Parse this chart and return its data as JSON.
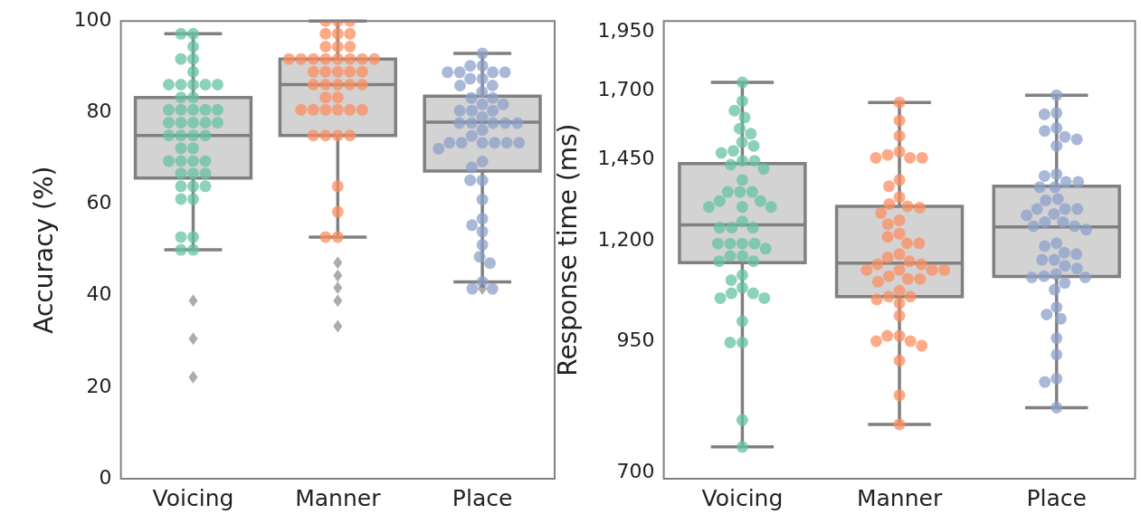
{
  "chart_data": [
    {
      "type": "box",
      "ylabel": "Accuracy (%)",
      "categories": [
        "Voicing",
        "Manner",
        "Place"
      ],
      "color": "#d3d3d3",
      "marker": "circle",
      "grid": false,
      "legend": false,
      "ylim": [
        0,
        100
      ],
      "yticks": [
        0,
        20,
        40,
        60,
        80,
        100
      ],
      "boxes": [
        {
          "low": 50.0,
          "q1": 65.7,
          "median": 75.0,
          "q3": 83.3,
          "high": 97.2,
          "outliers": [
            38.9,
            30.6,
            22.2
          ]
        },
        {
          "low": 52.8,
          "q1": 75.0,
          "median": 86.1,
          "q3": 91.7,
          "high": 100,
          "outliers": [
            47.2,
            44.4,
            41.7,
            38.9,
            33.3
          ]
        },
        {
          "low": 43.0,
          "q1": 67.2,
          "median": 77.9,
          "q3": 83.6,
          "high": 92.9,
          "outliers": [
            41.5
          ]
        }
      ],
      "series": [
        {
          "type": "scatter",
          "color": "#66c2a5",
          "x": [
            "Voicing",
            "Voicing",
            "Voicing",
            "Voicing",
            "Voicing",
            "Voicing",
            "Voicing",
            "Voicing",
            "Voicing",
            "Voicing",
            "Voicing",
            "Voicing",
            "Voicing",
            "Voicing",
            "Voicing",
            "Voicing",
            "Voicing",
            "Voicing",
            "Voicing",
            "Voicing",
            "Voicing",
            "Voicing",
            "Voicing",
            "Voicing",
            "Voicing",
            "Voicing",
            "Voicing",
            "Voicing",
            "Voicing",
            "Voicing",
            "Voicing",
            "Voicing",
            "Voicing",
            "Voicing",
            "Voicing",
            "Voicing",
            "Voicing",
            "Voicing",
            "Voicing",
            "Voicing",
            "Voicing",
            "Voicing",
            "Voicing",
            "Voicing",
            "Voicing"
          ],
          "values": [
            97.2,
            97.2,
            94.4,
            91.7,
            91.7,
            88.9,
            86.1,
            86.1,
            86.1,
            86.1,
            86.1,
            83.3,
            83.3,
            80.6,
            80.6,
            80.6,
            80.6,
            80.6,
            77.8,
            77.8,
            77.8,
            77.8,
            77.8,
            75.0,
            75.0,
            75.0,
            75.0,
            72.2,
            72.2,
            69.4,
            69.4,
            69.4,
            69.4,
            66.7,
            66.7,
            66.7,
            63.9,
            63.9,
            63.9,
            61.1,
            61.1,
            52.8,
            52.8,
            50.0,
            50.0
          ]
        },
        {
          "type": "scatter",
          "color": "#fc8d62",
          "x": [
            "Manner",
            "Manner",
            "Manner",
            "Manner",
            "Manner",
            "Manner",
            "Manner",
            "Manner",
            "Manner",
            "Manner",
            "Manner",
            "Manner",
            "Manner",
            "Manner",
            "Manner",
            "Manner",
            "Manner",
            "Manner",
            "Manner",
            "Manner",
            "Manner",
            "Manner",
            "Manner",
            "Manner",
            "Manner",
            "Manner",
            "Manner",
            "Manner",
            "Manner",
            "Manner",
            "Manner",
            "Manner",
            "Manner",
            "Manner",
            "Manner",
            "Manner",
            "Manner",
            "Manner",
            "Manner",
            "Manner",
            "Manner",
            "Manner",
            "Manner"
          ],
          "values": [
            100,
            100,
            100,
            97.2,
            97.2,
            97.2,
            94.4,
            94.4,
            94.4,
            91.7,
            91.7,
            91.7,
            91.7,
            91.7,
            91.7,
            91.7,
            91.7,
            88.9,
            88.9,
            88.9,
            88.9,
            88.9,
            86.1,
            86.1,
            86.1,
            86.1,
            86.1,
            83.3,
            83.3,
            80.6,
            80.6,
            80.6,
            80.6,
            80.6,
            80.6,
            75.0,
            75.0,
            75.0,
            75.0,
            63.9,
            58.3,
            52.8,
            52.8
          ]
        },
        {
          "type": "scatter",
          "color": "#8da0cb",
          "x": [
            "Place",
            "Place",
            "Place",
            "Place",
            "Place",
            "Place",
            "Place",
            "Place",
            "Place",
            "Place",
            "Place",
            "Place",
            "Place",
            "Place",
            "Place",
            "Place",
            "Place",
            "Place",
            "Place",
            "Place",
            "Place",
            "Place",
            "Place",
            "Place",
            "Place",
            "Place",
            "Place",
            "Place",
            "Place",
            "Place",
            "Place",
            "Place",
            "Place",
            "Place",
            "Place",
            "Place",
            "Place",
            "Place",
            "Place",
            "Place",
            "Place",
            "Place",
            "Place",
            "Place",
            "Place",
            "Place",
            "Place",
            "Place"
          ],
          "values": [
            92.9,
            90.2,
            90.2,
            88.8,
            88.8,
            88.8,
            88.8,
            87.4,
            87.4,
            85.9,
            85.9,
            84.5,
            83.2,
            83.2,
            81.8,
            81.8,
            80.4,
            80.4,
            80.4,
            79.0,
            77.7,
            77.7,
            77.7,
            77.7,
            77.7,
            76.2,
            74.9,
            73.4,
            73.4,
            73.4,
            73.4,
            73.4,
            73.4,
            72.1,
            69.3,
            68.0,
            65.2,
            65.2,
            61.0,
            56.8,
            55.4,
            54.0,
            51.1,
            48.5,
            47.1,
            43.0,
            41.5,
            41.5
          ]
        }
      ]
    },
    {
      "type": "box",
      "ylabel": "Response time (ms)",
      "categories": [
        "Voicing",
        "Manner",
        "Place"
      ],
      "color": "#d3d3d3",
      "marker": "circle",
      "grid": false,
      "legend": false,
      "log": true,
      "ylim": [
        690,
        2000
      ],
      "yticks": [
        700,
        950,
        {
          "value": 1200,
          "label": "1,200"
        },
        {
          "value": 1450,
          "label": "1,450"
        },
        {
          "value": 1700,
          "label": "1,700"
        },
        {
          "value": 1950,
          "label": "1,950"
        }
      ],
      "boxes": [
        {
          "low": 743,
          "q1": 1140,
          "median": 1245,
          "q3": 1436,
          "high": 1734
        },
        {
          "low": 783,
          "q1": 1054,
          "median": 1139,
          "q3": 1300,
          "high": 1655
        },
        {
          "low": 814,
          "q1": 1104,
          "median": 1239,
          "q3": 1362,
          "high": 1683
        }
      ],
      "series": [
        {
          "type": "scatter",
          "color": "#66c2a5",
          "x": [
            "Voicing",
            "Voicing",
            "Voicing",
            "Voicing",
            "Voicing",
            "Voicing",
            "Voicing",
            "Voicing",
            "Voicing",
            "Voicing",
            "Voicing",
            "Voicing",
            "Voicing",
            "Voicing",
            "Voicing",
            "Voicing",
            "Voicing",
            "Voicing",
            "Voicing",
            "Voicing",
            "Voicing",
            "Voicing",
            "Voicing",
            "Voicing",
            "Voicing",
            "Voicing",
            "Voicing",
            "Voicing",
            "Voicing",
            "Voicing",
            "Voicing",
            "Voicing",
            "Voicing",
            "Voicing",
            "Voicing",
            "Voicing",
            "Voicing",
            "Voicing",
            "Voicing",
            "Voicing",
            "Voicing",
            "Voicing",
            "Voicing",
            "Voicing",
            "Voicing",
            "Voicing",
            "Voicing",
            "Voicing"
          ],
          "values": [
            1734,
            1660,
            1624,
            1598,
            1557,
            1539,
            1509,
            1496,
            1479,
            1472,
            1445,
            1445,
            1432,
            1418,
            1382,
            1344,
            1344,
            1344,
            1316,
            1316,
            1298,
            1298,
            1298,
            1255,
            1237,
            1237,
            1237,
            1192,
            1192,
            1192,
            1192,
            1178,
            1158,
            1158,
            1144,
            1144,
            1108,
            1095,
            1076,
            1062,
            1062,
            1050,
            1050,
            995,
            947,
            947,
            791,
            743
          ]
        },
        {
          "type": "scatter",
          "color": "#fc8d62",
          "x": [
            "Manner",
            "Manner",
            "Manner",
            "Manner",
            "Manner",
            "Manner",
            "Manner",
            "Manner",
            "Manner",
            "Manner",
            "Manner",
            "Manner",
            "Manner",
            "Manner",
            "Manner",
            "Manner",
            "Manner",
            "Manner",
            "Manner",
            "Manner",
            "Manner",
            "Manner",
            "Manner",
            "Manner",
            "Manner",
            "Manner",
            "Manner",
            "Manner",
            "Manner",
            "Manner",
            "Manner",
            "Manner",
            "Manner",
            "Manner",
            "Manner",
            "Manner",
            "Manner",
            "Manner",
            "Manner",
            "Manner",
            "Manner",
            "Manner",
            "Manner",
            "Manner",
            "Manner",
            "Manner",
            "Manner",
            "Manner"
          ],
          "values": [
            1655,
            1587,
            1531,
            1476,
            1465,
            1455,
            1455,
            1455,
            1382,
            1362,
            1328,
            1296,
            1300,
            1307,
            1280,
            1258,
            1247,
            1220,
            1211,
            1193,
            1193,
            1163,
            1154,
            1144,
            1136,
            1136,
            1121,
            1121,
            1121,
            1121,
            1105,
            1098,
            1098,
            1091,
            1068,
            1054,
            1054,
            1047,
            1038,
            1008,
            962,
            962,
            950,
            950,
            940,
            908,
            838,
            783
          ]
        },
        {
          "type": "scatter",
          "color": "#8da0cb",
          "x": [
            "Place",
            "Place",
            "Place",
            "Place",
            "Place",
            "Place",
            "Place",
            "Place",
            "Place",
            "Place",
            "Place",
            "Place",
            "Place",
            "Place",
            "Place",
            "Place",
            "Place",
            "Place",
            "Place",
            "Place",
            "Place",
            "Place",
            "Place",
            "Place",
            "Place",
            "Place",
            "Place",
            "Place",
            "Place",
            "Place",
            "Place",
            "Place",
            "Place",
            "Place",
            "Place",
            "Place",
            "Place",
            "Place",
            "Place",
            "Place",
            "Place",
            "Place",
            "Place",
            "Place",
            "Place",
            "Place",
            "Place",
            "Place"
          ],
          "values": [
            1683,
            1615,
            1610,
            1560,
            1549,
            1528,
            1519,
            1496,
            1401,
            1395,
            1376,
            1376,
            1359,
            1359,
            1322,
            1318,
            1292,
            1292,
            1292,
            1277,
            1273,
            1253,
            1253,
            1241,
            1241,
            1231,
            1193,
            1185,
            1167,
            1163,
            1148,
            1148,
            1132,
            1125,
            1110,
            1105,
            1102,
            1102,
            1088,
            1071,
            1028,
            1011,
            1001,
            957,
            921,
            871,
            864,
            814
          ]
        }
      ]
    }
  ]
}
